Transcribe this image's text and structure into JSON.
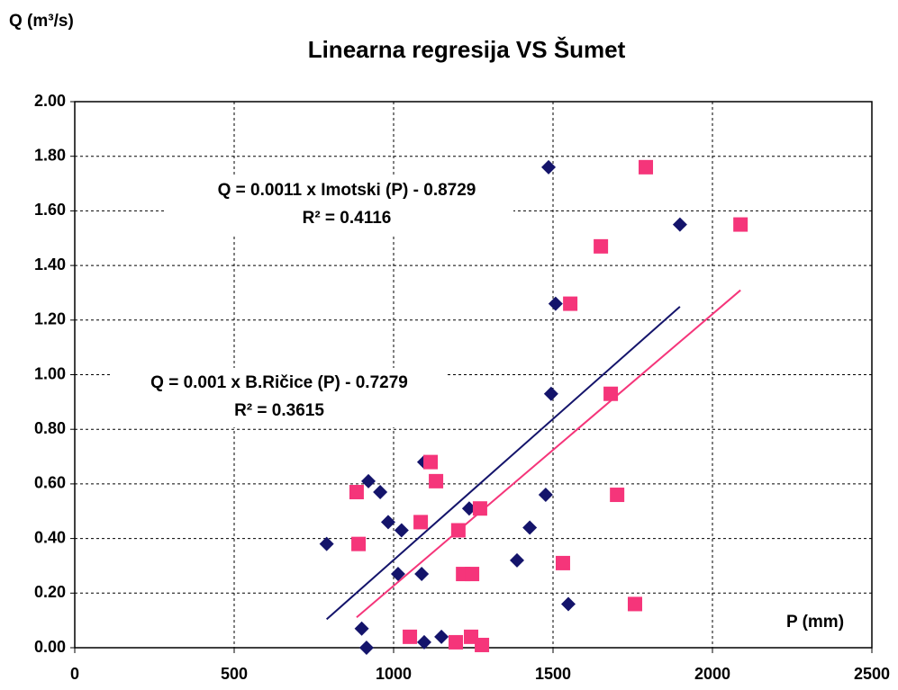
{
  "chart_data": {
    "type": "scatter",
    "title": "Linearna regresija VS Šumet",
    "y_label": "Q (m³/s)",
    "x_label": "P (mm)",
    "annotations": [
      "Q  = 0.0011 x Imotski (P)  - 0.8729",
      "R² = 0.4116",
      "Q = 0.001 x B.Ričice (P) - 0.7279",
      "R² = 0.3615"
    ],
    "xlim": [
      0,
      2500
    ],
    "xticks": [
      0,
      500,
      1000,
      1500,
      2000,
      2500
    ],
    "ylim": [
      0,
      2
    ],
    "yticks": [
      {
        "value": 0,
        "label": "0.00"
      },
      {
        "value": 0.2,
        "label": "0.20"
      },
      {
        "value": 0.4,
        "label": "0.40"
      },
      {
        "value": 0.6,
        "label": "0.60"
      },
      {
        "value": 0.8,
        "label": "0.80"
      },
      {
        "value": 1,
        "label": "1.00"
      },
      {
        "value": 1.2,
        "label": "1.20"
      },
      {
        "value": 1.4,
        "label": "1.40"
      },
      {
        "value": 1.6,
        "label": "1.60"
      },
      {
        "value": 1.8,
        "label": "1.80"
      },
      {
        "value": 2,
        "label": "2.00"
      }
    ],
    "grid": true,
    "series": [
      {
        "color": "#14146b",
        "marker": "diamond",
        "x": [
          790,
          900,
          915,
          921,
          958,
          983,
          1025,
          1014,
          1088,
          1096,
          1096,
          1150,
          1237,
          1387,
          1427,
          1477,
          1486,
          1494,
          1508,
          1548,
          1898
        ],
        "values": [
          0.38,
          0.07,
          0.0,
          0.61,
          0.57,
          0.46,
          0.43,
          0.27,
          0.27,
          0.68,
          0.02,
          0.04,
          0.51,
          0.32,
          0.44,
          0.56,
          1.76,
          0.93,
          1.26,
          0.16,
          1.55
        ]
      },
      {
        "color": "#f5357a",
        "marker": "square",
        "x": [
          884,
          890,
          1051,
          1085,
          1116,
          1133,
          1203,
          1195,
          1218,
          1246,
          1243,
          1271,
          1277,
          1554,
          1531,
          1650,
          1681,
          1701,
          1757,
          1791,
          2088
        ],
        "values": [
          0.57,
          0.38,
          0.04,
          0.46,
          0.68,
          0.61,
          0.43,
          0.02,
          0.27,
          0.27,
          0.04,
          0.51,
          0.01,
          1.26,
          0.31,
          1.47,
          0.93,
          0.56,
          0.16,
          1.76,
          1.55
        ]
      }
    ]
  }
}
